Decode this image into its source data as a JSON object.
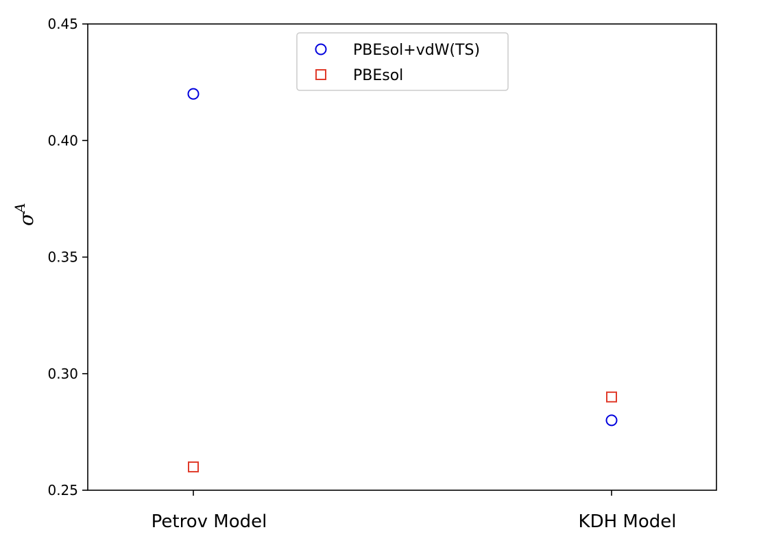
{
  "chart_data": {
    "type": "scatter",
    "title": "",
    "xlabel": "",
    "ylabel": "σ",
    "ylabel_superscript": "A",
    "categories": [
      "Petrov Model",
      "KDH Model"
    ],
    "ylim": [
      0.25,
      0.45
    ],
    "yticks": [
      0.25,
      0.3,
      0.35,
      0.4,
      0.45
    ],
    "ytick_labels": [
      "0.25",
      "0.30",
      "0.35",
      "0.40",
      "0.45"
    ],
    "grid": false,
    "legend_position": "top-center",
    "series": [
      {
        "name": "PBEsol+vdW(TS)",
        "marker": "circle",
        "color": "#0000dd",
        "values": [
          0.42,
          0.28
        ]
      },
      {
        "name": "PBEsol",
        "marker": "square",
        "color": "#e03a2a",
        "values": [
          0.26,
          0.29
        ]
      }
    ]
  }
}
